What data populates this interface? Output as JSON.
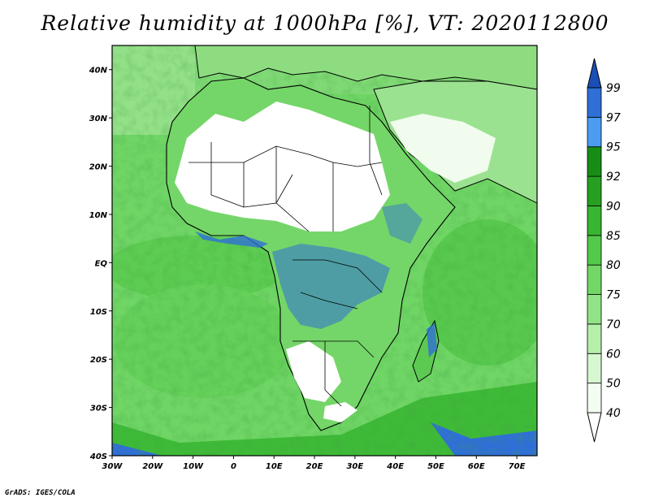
{
  "title": "Relative humidity at 1000hPa [%], VT: 2020112800",
  "credit": "GrADS: IGES/COLA",
  "map": {
    "projection": "latlon",
    "lon_range": [
      -30,
      75
    ],
    "lat_range": [
      -40,
      45
    ],
    "xticks": [
      {
        "lon": -30,
        "label": "30W"
      },
      {
        "lon": -20,
        "label": "20W"
      },
      {
        "lon": -10,
        "label": "10W"
      },
      {
        "lon": 0,
        "label": "0"
      },
      {
        "lon": 10,
        "label": "10E"
      },
      {
        "lon": 20,
        "label": "20E"
      },
      {
        "lon": 30,
        "label": "30E"
      },
      {
        "lon": 40,
        "label": "40E"
      },
      {
        "lon": 50,
        "label": "50E"
      },
      {
        "lon": 60,
        "label": "60E"
      },
      {
        "lon": 70,
        "label": "70E"
      }
    ],
    "yticks": [
      {
        "lat": 40,
        "label": "40N"
      },
      {
        "lat": 30,
        "label": "30N"
      },
      {
        "lat": 20,
        "label": "20N"
      },
      {
        "lat": 10,
        "label": "10N"
      },
      {
        "lat": 0,
        "label": "EQ"
      },
      {
        "lat": -10,
        "label": "10S"
      },
      {
        "lat": -20,
        "label": "20S"
      },
      {
        "lat": -30,
        "label": "30S"
      },
      {
        "lat": -40,
        "label": "40S"
      }
    ]
  },
  "colorbar": {
    "levels": [
      "40",
      "50",
      "60",
      "70",
      "75",
      "80",
      "85",
      "90",
      "92",
      "95",
      "97",
      "99"
    ],
    "colors": [
      "#f3fdf1",
      "#d7f7d0",
      "#b6efaa",
      "#92e387",
      "#72d766",
      "#52c949",
      "#38b531",
      "#27a022",
      "#188d16",
      "#4a9df0",
      "#2f6fd6",
      "#1b4fb8"
    ],
    "low_color": "#ffffff",
    "high_color": "#1b4fb8"
  }
}
